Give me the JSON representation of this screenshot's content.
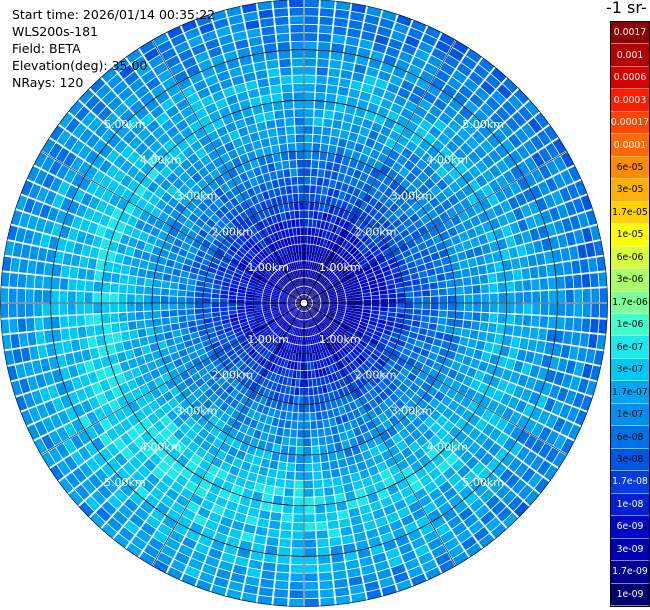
{
  "info": {
    "start_time": "Start time: 2026/01/14 00:35:22",
    "device": "WLS200s-181",
    "field": "Field: BETA",
    "elevation": "Elevation(deg): 35.00",
    "nrays": "NRays: 120"
  },
  "colorbar": {
    "unit_label": "-1 sr-",
    "ticks": [
      "0.0017",
      "0.001",
      "0.0006",
      "0.0003",
      "0.00017",
      "0.0001",
      "6e-05",
      "3e-05",
      "1.7e-05",
      "1e-05",
      "6e-06",
      "3e-06",
      "1.7e-06",
      "1e-06",
      "6e-07",
      "3e-07",
      "1.7e-07",
      "1e-07",
      "6e-08",
      "3e-08",
      "1.7e-08",
      "1e-08",
      "6e-09",
      "3e-09",
      "1.7e-09",
      "1e-09"
    ],
    "colors": [
      "#8b0000",
      "#b30000",
      "#d90000",
      "#ff1a00",
      "#ff4500",
      "#ff6a00",
      "#ff8c00",
      "#ffb000",
      "#ffd200",
      "#ffff00",
      "#d7ff3c",
      "#a8ff6a",
      "#7cff97",
      "#3fffd0",
      "#1de8f0",
      "#00c8f8",
      "#00a6f4",
      "#0090f0",
      "#0072ea",
      "#0056e4",
      "#003ce0",
      "#0020d8",
      "#0008c8",
      "#0000b0",
      "#000090",
      "#000070"
    ]
  },
  "chart_data": {
    "type": "heatmap",
    "projection": "polar-ppi",
    "field": "BETA",
    "elevation_deg": 35.0,
    "n_rays": 120,
    "range_rings_km": [
      1,
      2,
      3,
      4,
      5
    ],
    "range_labels": [
      "1.00km",
      "2.00km",
      "3.00km",
      "4.00km",
      "5.00km"
    ],
    "max_range_km": 6.0,
    "color_scale": "log",
    "value_range": [
      1e-09,
      0.0017
    ],
    "radial_profile": {
      "range_km": [
        0.0,
        0.5,
        1.0,
        1.5,
        2.0,
        2.5,
        3.0,
        3.5,
        4.0,
        4.5,
        5.0,
        5.5,
        6.0
      ],
      "beta": [
        2e-09,
        3e-09,
        5e-09,
        1e-08,
        3e-08,
        6e-08,
        1e-07,
        1.7e-07,
        3e-07,
        2e-07,
        1.5e-07,
        1e-07,
        7e-08
      ]
    }
  }
}
